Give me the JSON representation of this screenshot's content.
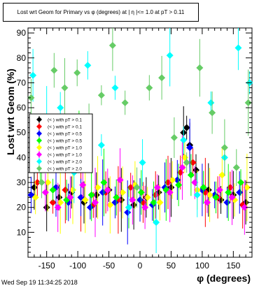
{
  "chart_data": {
    "type": "scatter",
    "title": "Lost wrt Geom for Primary vs φ (degrees) at | η |<= 1.0 at pT > 0.11",
    "xlabel": "φ (degrees)",
    "ylabel": "Lost wrt Geom (%)",
    "xlim": [
      -180,
      180
    ],
    "ylim": [
      0,
      92
    ],
    "x_ticks": [
      -150,
      -100,
      -50,
      0,
      50,
      100,
      150
    ],
    "y_ticks": [
      10,
      20,
      30,
      40,
      50,
      60,
      70,
      80,
      90
    ],
    "grid": false,
    "legend_position": "upper-left",
    "series": [
      {
        "name": "(< ) with pT > 0.1",
        "color": "#000000",
        "x": [
          -170,
          -150,
          -130,
          -110,
          -90,
          -70,
          -50,
          -30,
          -10,
          10,
          30,
          50,
          70,
          75,
          80,
          90,
          110,
          130,
          150,
          170
        ],
        "y": [
          28,
          20,
          24,
          26,
          22,
          25,
          27,
          23,
          21,
          24,
          26,
          28,
          50,
          52,
          45,
          35,
          27,
          23,
          25,
          22
        ]
      },
      {
        "name": "(< ) with pT > 0.1",
        "color": "#ff0000",
        "x": [
          -165,
          -140,
          -120,
          -95,
          -75,
          -55,
          -35,
          -15,
          5,
          25,
          45,
          65,
          85,
          105,
          125,
          145,
          165
        ],
        "y": [
          30,
          22,
          27,
          24,
          21,
          26,
          23,
          28,
          22,
          25,
          30,
          34,
          38,
          26,
          24,
          28,
          21
        ]
      },
      {
        "name": "(< ) with pT > 0.5",
        "color": "#0000ff",
        "x": [
          -175,
          -155,
          -135,
          -115,
          -95,
          -80,
          -60,
          -40,
          -20,
          0,
          20,
          40,
          60,
          80,
          100,
          120,
          140,
          160
        ],
        "y": [
          25,
          45,
          28,
          22,
          24,
          20,
          26,
          22,
          18,
          23,
          21,
          28,
          31,
          44,
          27,
          25,
          22,
          26
        ]
      },
      {
        "name": "(< ) with pT > 0.5",
        "color": "#00ff00",
        "x": [
          -160,
          -140,
          -118,
          -98,
          -78,
          -58,
          -38,
          -18,
          2,
          22,
          42,
          62,
          82,
          102,
          122,
          142,
          162
        ],
        "y": [
          35,
          27,
          23,
          48,
          25,
          30,
          24,
          20,
          26,
          22,
          27,
          29,
          33,
          28,
          24,
          26,
          30
        ]
      },
      {
        "name": "(< ) with pT > 1.0",
        "color": "#ffff00",
        "x": [
          -168,
          -148,
          -128,
          -108,
          -88,
          -68,
          -48,
          -28,
          -8,
          12,
          32,
          52,
          72,
          92,
          112,
          132,
          152,
          172
        ],
        "y": [
          24,
          30,
          22,
          27,
          23,
          28,
          21,
          26,
          29,
          24,
          22,
          31,
          40,
          27,
          25,
          33,
          23,
          28
        ]
      },
      {
        "name": "(< ) with pT > 1.0",
        "color": "#ff00ff",
        "x": [
          -172,
          -152,
          -132,
          -112,
          -92,
          -72,
          -52,
          -32,
          -12,
          8,
          28,
          48,
          68,
          88,
          108,
          128,
          148,
          168
        ],
        "y": [
          38,
          26,
          20,
          24,
          29,
          22,
          27,
          31,
          23,
          20,
          28,
          26,
          36,
          30,
          22,
          27,
          24,
          20
        ]
      },
      {
        "name": "(< ) with pT > 2.0",
        "color": "#00ffff",
        "x": [
          -172,
          -150,
          -128,
          -106,
          -84,
          -62,
          -40,
          -18,
          4,
          26,
          48,
          70,
          92,
          114,
          136,
          158,
          176
        ],
        "y": [
          73,
          56,
          60,
          34,
          77,
          45,
          68,
          20,
          38,
          14,
          81,
          47,
          25,
          62,
          40,
          84,
          70
        ]
      },
      {
        "name": "(< ) with pT > 2.0",
        "color": "#66cc66",
        "x": [
          -175,
          -158,
          -138,
          -121,
          -101,
          -82,
          -62,
          -44,
          -24,
          -5,
          15,
          35,
          55,
          75,
          96,
          116,
          136,
          155,
          174
        ],
        "y": [
          64,
          30,
          75,
          68,
          74,
          56,
          65,
          85,
          62,
          28,
          68,
          72,
          48,
          38,
          76,
          58,
          44,
          36,
          62
        ]
      }
    ]
  },
  "footer": {
    "timestamp": "Wed Sep 19 11:34:25 2018"
  }
}
